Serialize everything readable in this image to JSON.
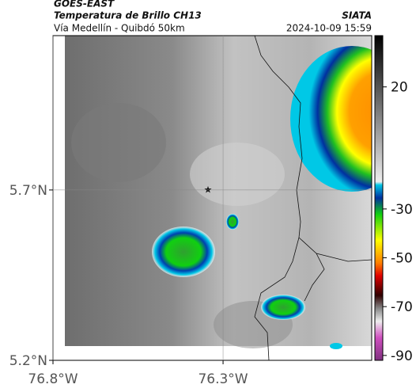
{
  "header": {
    "satellite": "GOES-EAST",
    "title": "Temperatura de Brillo CH13",
    "subtitle": "Vía Medellín - Quibdó 50km",
    "source": "SIATA",
    "datetime": "2024-10-09 15:59"
  },
  "map": {
    "xlim": [
      -76.8,
      -75.863
    ],
    "ylim": [
      5.2,
      6.153
    ],
    "xticks": [
      {
        "value": -76.8,
        "label": "76.8°W"
      },
      {
        "value": -76.3,
        "label": "76.3°W"
      }
    ],
    "yticks": [
      {
        "value": 5.7,
        "label": "5.7°N"
      },
      {
        "value": 5.2,
        "label": "5.2°N"
      }
    ],
    "grid": true
  },
  "colorbar": {
    "range": [
      -92,
      41
    ],
    "ticks": [
      20,
      -30,
      -50,
      -70,
      -90
    ]
  }
}
